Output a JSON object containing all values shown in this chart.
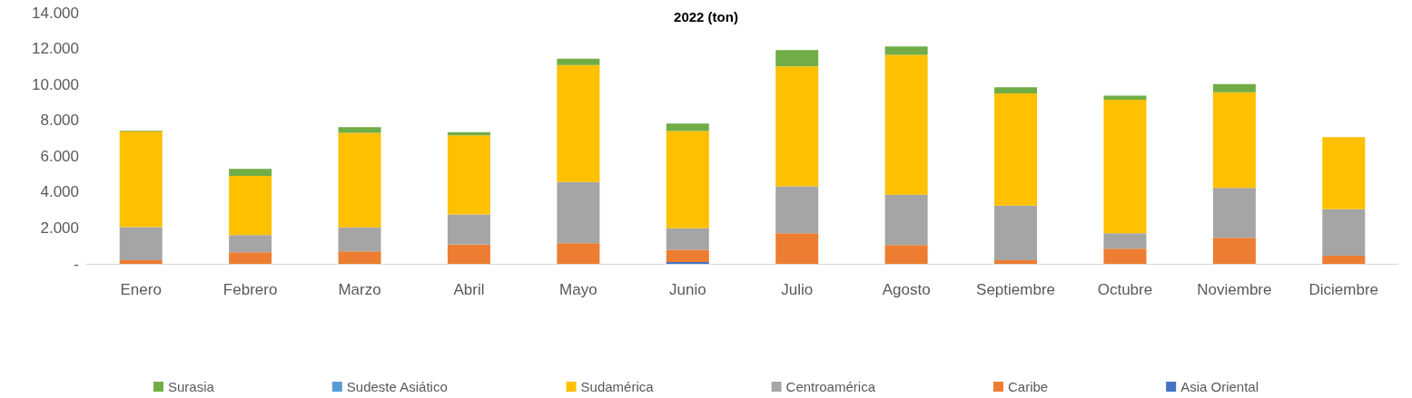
{
  "chart_data": {
    "type": "bar",
    "title": "2022 (ton)",
    "stacked": true,
    "legend": "bottom",
    "grid": false,
    "categories": [
      "Enero",
      "Febrero",
      "Marzo",
      "Abril",
      "Mayo",
      "Junio",
      "Julio",
      "Agosto",
      "Septiembre",
      "Octubre",
      "Noviembre",
      "Diciembre"
    ],
    "ylim": [
      0,
      14000
    ],
    "yticks": [
      {
        "value": 0,
        "label": "-"
      },
      {
        "value": 2000,
        "label": "2.000"
      },
      {
        "value": 4000,
        "label": "4.000"
      },
      {
        "value": 6000,
        "label": "6.000"
      },
      {
        "value": 8000,
        "label": "8.000"
      },
      {
        "value": 10000,
        "label": "10.000"
      },
      {
        "value": 12000,
        "label": "12.000"
      },
      {
        "value": 14000,
        "label": "14.000"
      }
    ],
    "series": [
      {
        "name": "Asia Oriental",
        "color": "#4472c4",
        "values": [
          0,
          0,
          0,
          0,
          0,
          100,
          0,
          0,
          0,
          0,
          0,
          0
        ]
      },
      {
        "name": "Caribe",
        "color": "#ed7d31",
        "values": [
          200,
          650,
          700,
          1080,
          1150,
          680,
          1700,
          1050,
          200,
          850,
          1450,
          450
        ]
      },
      {
        "name": "Centroamérica",
        "color": "#a5a5a5",
        "values": [
          1850,
          950,
          1330,
          1670,
          3410,
          1200,
          2620,
          2800,
          3050,
          850,
          2780,
          2600
        ]
      },
      {
        "name": "Sudamérica",
        "color": "#ffc000",
        "values": [
          5330,
          3300,
          5270,
          4420,
          6520,
          5430,
          6680,
          7800,
          6250,
          7450,
          5330,
          4010
        ]
      },
      {
        "name": "Sudeste Asiático",
        "color": "#5b9bd5",
        "values": [
          0,
          0,
          0,
          0,
          0,
          0,
          0,
          0,
          0,
          0,
          0,
          0
        ]
      },
      {
        "name": "Surasia",
        "color": "#70ad47",
        "values": [
          40,
          400,
          320,
          170,
          350,
          410,
          920,
          470,
          340,
          220,
          460,
          0
        ]
      }
    ]
  }
}
